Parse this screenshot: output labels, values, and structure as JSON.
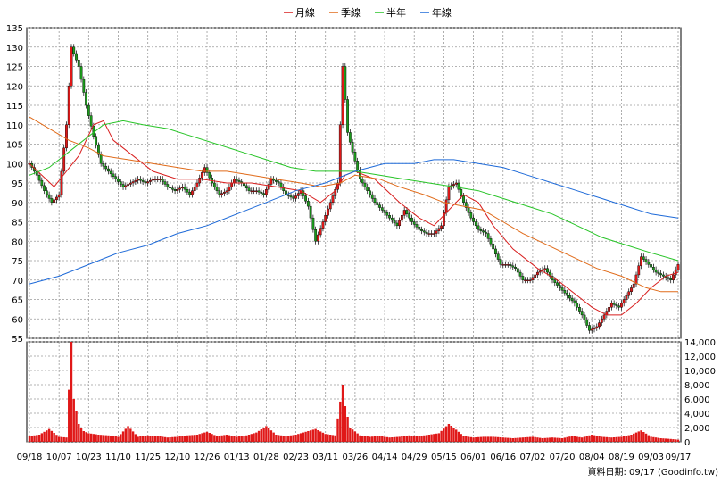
{
  "chart_data": {
    "type": "candlestick",
    "legend": [
      {
        "name": "月線",
        "color": "#d81e1e"
      },
      {
        "name": "季線",
        "color": "#e06b1a"
      },
      {
        "name": "半年",
        "color": "#27c427"
      },
      {
        "name": "年線",
        "color": "#1e6ad8"
      }
    ],
    "price_axis": {
      "ylim": [
        55,
        135
      ],
      "ticks": [
        55,
        60,
        65,
        70,
        75,
        80,
        85,
        90,
        95,
        100,
        105,
        110,
        115,
        120,
        125,
        130,
        135
      ]
    },
    "volume_axis": {
      "ylim": [
        0,
        14000
      ],
      "ticks": [
        0,
        2000,
        4000,
        6000,
        8000,
        10000,
        12000,
        14000
      ],
      "tick_labels": [
        "0",
        "2,000",
        "4,000",
        "6,000",
        "8,000",
        "10,000",
        "12,000",
        "14,000"
      ]
    },
    "x_ticks": [
      "09/18",
      "10/07",
      "10/23",
      "11/10",
      "11/25",
      "12/10",
      "12/26",
      "01/13",
      "01/28",
      "02/23",
      "03/11",
      "03/26",
      "04/14",
      "04/29",
      "05/15",
      "06/01",
      "06/16",
      "07/02",
      "07/20",
      "08/04",
      "08/19",
      "09/03",
      "09/17"
    ],
    "x_tick_positions": [
      0,
      12,
      24,
      36,
      48,
      60,
      72,
      84,
      96,
      108,
      120,
      132,
      144,
      156,
      168,
      180,
      192,
      204,
      216,
      228,
      240,
      252,
      263
    ],
    "close_series": [
      {
        "i": 0,
        "v": 100
      },
      {
        "i": 3,
        "v": 97
      },
      {
        "i": 6,
        "v": 93
      },
      {
        "i": 9,
        "v": 90
      },
      {
        "i": 12,
        "v": 92
      },
      {
        "i": 15,
        "v": 110
      },
      {
        "i": 17,
        "v": 130
      },
      {
        "i": 20,
        "v": 125
      },
      {
        "i": 23,
        "v": 115
      },
      {
        "i": 26,
        "v": 107
      },
      {
        "i": 29,
        "v": 100
      },
      {
        "i": 32,
        "v": 98
      },
      {
        "i": 35,
        "v": 96
      },
      {
        "i": 38,
        "v": 94
      },
      {
        "i": 41,
        "v": 95
      },
      {
        "i": 44,
        "v": 96
      },
      {
        "i": 47,
        "v": 95
      },
      {
        "i": 50,
        "v": 96
      },
      {
        "i": 53,
        "v": 96
      },
      {
        "i": 56,
        "v": 94
      },
      {
        "i": 59,
        "v": 93
      },
      {
        "i": 62,
        "v": 94
      },
      {
        "i": 65,
        "v": 92
      },
      {
        "i": 68,
        "v": 95
      },
      {
        "i": 71,
        "v": 99
      },
      {
        "i": 74,
        "v": 95
      },
      {
        "i": 77,
        "v": 92
      },
      {
        "i": 80,
        "v": 93
      },
      {
        "i": 83,
        "v": 96
      },
      {
        "i": 86,
        "v": 95
      },
      {
        "i": 89,
        "v": 93
      },
      {
        "i": 92,
        "v": 93
      },
      {
        "i": 95,
        "v": 92
      },
      {
        "i": 98,
        "v": 96
      },
      {
        "i": 101,
        "v": 95
      },
      {
        "i": 104,
        "v": 92
      },
      {
        "i": 107,
        "v": 91
      },
      {
        "i": 110,
        "v": 93
      },
      {
        "i": 113,
        "v": 89
      },
      {
        "i": 116,
        "v": 80
      },
      {
        "i": 119,
        "v": 85
      },
      {
        "i": 122,
        "v": 90
      },
      {
        "i": 125,
        "v": 95
      },
      {
        "i": 127,
        "v": 125
      },
      {
        "i": 129,
        "v": 108
      },
      {
        "i": 131,
        "v": 103
      },
      {
        "i": 134,
        "v": 96
      },
      {
        "i": 137,
        "v": 93
      },
      {
        "i": 140,
        "v": 90
      },
      {
        "i": 143,
        "v": 88
      },
      {
        "i": 146,
        "v": 86
      },
      {
        "i": 149,
        "v": 84
      },
      {
        "i": 152,
        "v": 88
      },
      {
        "i": 155,
        "v": 85
      },
      {
        "i": 158,
        "v": 83
      },
      {
        "i": 161,
        "v": 82
      },
      {
        "i": 164,
        "v": 82
      },
      {
        "i": 167,
        "v": 84
      },
      {
        "i": 170,
        "v": 94
      },
      {
        "i": 173,
        "v": 95
      },
      {
        "i": 176,
        "v": 90
      },
      {
        "i": 179,
        "v": 86
      },
      {
        "i": 182,
        "v": 83
      },
      {
        "i": 185,
        "v": 82
      },
      {
        "i": 188,
        "v": 78
      },
      {
        "i": 191,
        "v": 74
      },
      {
        "i": 194,
        "v": 74
      },
      {
        "i": 197,
        "v": 73
      },
      {
        "i": 200,
        "v": 70
      },
      {
        "i": 203,
        "v": 70
      },
      {
        "i": 206,
        "v": 72
      },
      {
        "i": 209,
        "v": 73
      },
      {
        "i": 212,
        "v": 70
      },
      {
        "i": 215,
        "v": 68
      },
      {
        "i": 218,
        "v": 66
      },
      {
        "i": 221,
        "v": 64
      },
      {
        "i": 224,
        "v": 61
      },
      {
        "i": 227,
        "v": 57
      },
      {
        "i": 230,
        "v": 58
      },
      {
        "i": 233,
        "v": 61
      },
      {
        "i": 236,
        "v": 64
      },
      {
        "i": 239,
        "v": 63
      },
      {
        "i": 242,
        "v": 66
      },
      {
        "i": 245,
        "v": 69
      },
      {
        "i": 248,
        "v": 76
      },
      {
        "i": 251,
        "v": 74
      },
      {
        "i": 254,
        "v": 72
      },
      {
        "i": 257,
        "v": 71
      },
      {
        "i": 260,
        "v": 70
      },
      {
        "i": 263,
        "v": 74
      }
    ],
    "ma_lines": {
      "月線": [
        [
          0,
          100
        ],
        [
          10,
          94
        ],
        [
          20,
          102
        ],
        [
          26,
          110
        ],
        [
          30,
          111
        ],
        [
          34,
          106
        ],
        [
          40,
          103
        ],
        [
          50,
          98
        ],
        [
          60,
          96
        ],
        [
          70,
          96
        ],
        [
          80,
          95
        ],
        [
          90,
          95
        ],
        [
          100,
          94
        ],
        [
          110,
          93
        ],
        [
          118,
          90
        ],
        [
          124,
          93
        ],
        [
          128,
          97
        ],
        [
          132,
          98
        ],
        [
          140,
          96
        ],
        [
          150,
          90
        ],
        [
          158,
          86
        ],
        [
          164,
          84
        ],
        [
          170,
          88
        ],
        [
          176,
          92
        ],
        [
          182,
          90
        ],
        [
          188,
          84
        ],
        [
          196,
          78
        ],
        [
          206,
          73
        ],
        [
          214,
          70
        ],
        [
          222,
          66
        ],
        [
          228,
          63
        ],
        [
          234,
          61
        ],
        [
          240,
          61
        ],
        [
          246,
          64
        ],
        [
          252,
          68
        ],
        [
          258,
          71
        ],
        [
          263,
          72
        ]
      ],
      "季線": [
        [
          0,
          112
        ],
        [
          8,
          109
        ],
        [
          16,
          106
        ],
        [
          24,
          104
        ],
        [
          30,
          102
        ],
        [
          40,
          101
        ],
        [
          50,
          100
        ],
        [
          60,
          99
        ],
        [
          70,
          98
        ],
        [
          80,
          98
        ],
        [
          90,
          97
        ],
        [
          100,
          96
        ],
        [
          110,
          95
        ],
        [
          118,
          94
        ],
        [
          126,
          95
        ],
        [
          132,
          97
        ],
        [
          142,
          96
        ],
        [
          150,
          94
        ],
        [
          160,
          92
        ],
        [
          168,
          90
        ],
        [
          176,
          89
        ],
        [
          184,
          88
        ],
        [
          192,
          85
        ],
        [
          200,
          82
        ],
        [
          210,
          79
        ],
        [
          220,
          76
        ],
        [
          230,
          73
        ],
        [
          240,
          71
        ],
        [
          250,
          68
        ],
        [
          256,
          67
        ],
        [
          263,
          67
        ]
      ],
      "半年": [
        [
          0,
          97
        ],
        [
          8,
          99
        ],
        [
          16,
          103
        ],
        [
          24,
          107
        ],
        [
          30,
          110
        ],
        [
          38,
          111
        ],
        [
          46,
          110
        ],
        [
          56,
          109
        ],
        [
          66,
          107
        ],
        [
          76,
          105
        ],
        [
          86,
          103
        ],
        [
          96,
          101
        ],
        [
          106,
          99
        ],
        [
          116,
          98
        ],
        [
          124,
          98
        ],
        [
          132,
          98
        ],
        [
          142,
          97
        ],
        [
          152,
          96
        ],
        [
          162,
          95
        ],
        [
          172,
          94
        ],
        [
          182,
          93
        ],
        [
          192,
          91
        ],
        [
          202,
          89
        ],
        [
          212,
          87
        ],
        [
          222,
          84
        ],
        [
          232,
          81
        ],
        [
          242,
          79
        ],
        [
          252,
          77
        ],
        [
          263,
          75
        ]
      ],
      "年線": [
        [
          0,
          69
        ],
        [
          12,
          71
        ],
        [
          24,
          74
        ],
        [
          36,
          77
        ],
        [
          48,
          79
        ],
        [
          60,
          82
        ],
        [
          72,
          84
        ],
        [
          84,
          87
        ],
        [
          96,
          90
        ],
        [
          108,
          93
        ],
        [
          120,
          95
        ],
        [
          132,
          98
        ],
        [
          144,
          100
        ],
        [
          156,
          100
        ],
        [
          164,
          101
        ],
        [
          172,
          101
        ],
        [
          182,
          100
        ],
        [
          192,
          99
        ],
        [
          202,
          97
        ],
        [
          212,
          95
        ],
        [
          222,
          93
        ],
        [
          232,
          91
        ],
        [
          242,
          89
        ],
        [
          252,
          87
        ],
        [
          263,
          86
        ]
      ]
    },
    "volume_series": [
      {
        "i": 0,
        "v": 800
      },
      {
        "i": 4,
        "v": 1000
      },
      {
        "i": 8,
        "v": 1800
      },
      {
        "i": 12,
        "v": 700
      },
      {
        "i": 15,
        "v": 600
      },
      {
        "i": 17,
        "v": 14000
      },
      {
        "i": 18,
        "v": 6000
      },
      {
        "i": 20,
        "v": 2500
      },
      {
        "i": 22,
        "v": 1500
      },
      {
        "i": 24,
        "v": 1200
      },
      {
        "i": 28,
        "v": 1000
      },
      {
        "i": 32,
        "v": 900
      },
      {
        "i": 36,
        "v": 700
      },
      {
        "i": 40,
        "v": 2200
      },
      {
        "i": 44,
        "v": 700
      },
      {
        "i": 48,
        "v": 900
      },
      {
        "i": 52,
        "v": 800
      },
      {
        "i": 56,
        "v": 600
      },
      {
        "i": 60,
        "v": 700
      },
      {
        "i": 64,
        "v": 900
      },
      {
        "i": 68,
        "v": 1000
      },
      {
        "i": 72,
        "v": 1400
      },
      {
        "i": 76,
        "v": 800
      },
      {
        "i": 80,
        "v": 1000
      },
      {
        "i": 84,
        "v": 700
      },
      {
        "i": 88,
        "v": 900
      },
      {
        "i": 92,
        "v": 1300
      },
      {
        "i": 96,
        "v": 2200
      },
      {
        "i": 100,
        "v": 1000
      },
      {
        "i": 104,
        "v": 800
      },
      {
        "i": 108,
        "v": 1000
      },
      {
        "i": 112,
        "v": 1400
      },
      {
        "i": 116,
        "v": 1800
      },
      {
        "i": 120,
        "v": 1100
      },
      {
        "i": 124,
        "v": 900
      },
      {
        "i": 127,
        "v": 8000
      },
      {
        "i": 128,
        "v": 5000
      },
      {
        "i": 130,
        "v": 2000
      },
      {
        "i": 134,
        "v": 900
      },
      {
        "i": 138,
        "v": 700
      },
      {
        "i": 142,
        "v": 800
      },
      {
        "i": 146,
        "v": 600
      },
      {
        "i": 150,
        "v": 700
      },
      {
        "i": 154,
        "v": 900
      },
      {
        "i": 158,
        "v": 800
      },
      {
        "i": 162,
        "v": 1000
      },
      {
        "i": 166,
        "v": 1200
      },
      {
        "i": 170,
        "v": 2500
      },
      {
        "i": 172,
        "v": 2000
      },
      {
        "i": 176,
        "v": 800
      },
      {
        "i": 180,
        "v": 600
      },
      {
        "i": 184,
        "v": 700
      },
      {
        "i": 188,
        "v": 700
      },
      {
        "i": 192,
        "v": 600
      },
      {
        "i": 196,
        "v": 500
      },
      {
        "i": 200,
        "v": 600
      },
      {
        "i": 204,
        "v": 700
      },
      {
        "i": 208,
        "v": 500
      },
      {
        "i": 212,
        "v": 600
      },
      {
        "i": 216,
        "v": 500
      },
      {
        "i": 220,
        "v": 800
      },
      {
        "i": 224,
        "v": 600
      },
      {
        "i": 228,
        "v": 1000
      },
      {
        "i": 232,
        "v": 700
      },
      {
        "i": 236,
        "v": 600
      },
      {
        "i": 240,
        "v": 700
      },
      {
        "i": 244,
        "v": 1000
      },
      {
        "i": 248,
        "v": 1600
      },
      {
        "i": 252,
        "v": 700
      },
      {
        "i": 256,
        "v": 500
      },
      {
        "i": 260,
        "v": 400
      },
      {
        "i": 263,
        "v": 300
      }
    ],
    "footer": "資料日期: 09/17  (Goodinfo.tw)"
  }
}
